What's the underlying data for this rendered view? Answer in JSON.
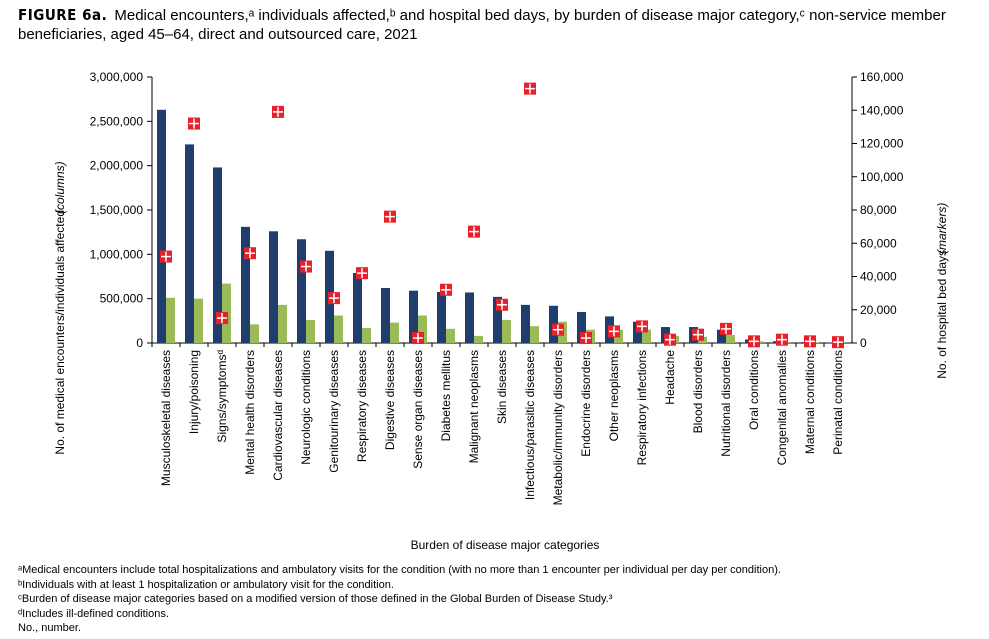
{
  "chart_data": {
    "type": "bar",
    "title_label": "FIGURE 6a.",
    "title": "Medical encounters,ᵃ individuals affected,ᵇ and hospital bed days, by burden of disease major category,ᶜ non-service member beneficiaries, aged 45–64, direct and outsourced care, 2021",
    "ylabel": "No. of medical encounters/individuals affected",
    "ylabel_note": "(columns)",
    "y2label": "No. of hospital bed days",
    "y2label_note": "(markers)",
    "xlabel": "Burden of disease major categories",
    "categories": [
      "Musculoskeletal diseases",
      "Injury/poisoning",
      "Signs/symptomsᵈ",
      "Mental health disorders",
      "Cardiovascular diseases",
      "Neurologic conditions",
      "Genitourinary diseases",
      "Respiratory diseases",
      "Digestive diseases",
      "Sense organ diseases",
      "Diabetes mellitus",
      "Malignant neoplasms",
      "Skin diseases",
      "Infectious/parasitic diseases",
      "Metabolic/immunity disorders",
      "Endocrine disorders",
      "Other neoplasms",
      "Respiratory infections",
      "Headache",
      "Blood disorders",
      "Nutritional disorders",
      "Oral conditions",
      "Congenital anomalies",
      "Maternal conditions",
      "Perinatal conditions"
    ],
    "series": [
      {
        "color": "#1f3e6d",
        "values": [
          2630000,
          2240000,
          1980000,
          1310000,
          1260000,
          1170000,
          1040000,
          790000,
          620000,
          590000,
          575000,
          570000,
          520000,
          430000,
          420000,
          350000,
          300000,
          240000,
          180000,
          180000,
          150000,
          40000,
          20000,
          10000,
          5000
        ]
      },
      {
        "color": "#9bbb59",
        "values": [
          510000,
          500000,
          670000,
          210000,
          430000,
          260000,
          310000,
          170000,
          230000,
          310000,
          160000,
          80000,
          260000,
          190000,
          240000,
          150000,
          150000,
          150000,
          80000,
          70000,
          90000,
          20000,
          10000,
          8000,
          2000
        ]
      },
      {
        "color": "#e8202a",
        "axis": "y2",
        "values": [
          52000,
          132000,
          15000,
          54000,
          139000,
          46000,
          27000,
          42000,
          76000,
          3000,
          32000,
          67000,
          23000,
          153000,
          8000,
          3000,
          7000,
          10000,
          2000,
          5000,
          8500,
          1000,
          2000,
          1000,
          500
        ]
      }
    ],
    "ylim": [
      0,
      3000000
    ],
    "yticks": [
      0,
      {
        "value": 500000,
        "label": "500,000"
      },
      {
        "value": 1000000,
        "label": "1,000,000"
      },
      {
        "value": 1500000,
        "label": "1,500,000"
      },
      {
        "value": 2000000,
        "label": "2,000,000"
      },
      {
        "value": 2500000,
        "label": "2,500,000"
      },
      {
        "value": 3000000,
        "label": "3,000,000"
      }
    ],
    "y2lim": [
      0,
      160000
    ],
    "y2ticks": [
      0,
      {
        "value": 20000,
        "label": "20,000"
      },
      {
        "value": 40000,
        "label": "40,000"
      },
      {
        "value": 60000,
        "label": "60,000"
      },
      {
        "value": 80000,
        "label": "80,000"
      },
      {
        "value": 100000,
        "label": "100,000"
      },
      {
        "value": 120000,
        "label": "120,000"
      },
      {
        "value": 140000,
        "label": "140,000"
      },
      {
        "value": 160000,
        "label": "160,000"
      }
    ],
    "grid": false,
    "footnotes": [
      "ᵃMedical encounters include total hospitalizations and ambulatory visits for the condition (with no more than 1 encounter per individual per day per condition).",
      "ᵇIndividuals with at least 1 hospitalization or ambulatory visit for the condition.",
      "ᶜBurden of disease major categories based on a modified version of those defined in the Global Burden of Disease Study.³",
      "ᵈIncludes ill-defined conditions.",
      "No., number."
    ]
  }
}
